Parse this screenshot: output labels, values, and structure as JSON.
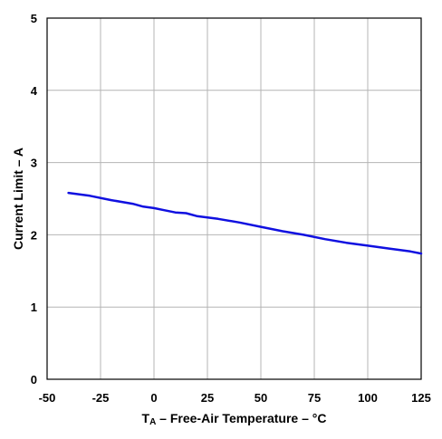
{
  "chart_data": {
    "type": "line",
    "title": "",
    "xlabel": {
      "symbol": "T",
      "subscript": "A",
      "text": " – Free-Air Temperature – °C"
    },
    "ylabel": "Current Limit – A",
    "xlim": [
      -50,
      125
    ],
    "ylim": [
      0,
      5
    ],
    "xticks": [
      "-50",
      "-25",
      "0",
      "25",
      "50",
      "75",
      "100",
      "125"
    ],
    "yticks": [
      "0",
      "1",
      "2",
      "3",
      "4",
      "5"
    ],
    "grid": true,
    "legend": "none",
    "series": [
      {
        "color": "#1010e0",
        "x": [
          -40,
          -30,
          -20,
          -10,
          -5,
          0,
          5,
          10,
          15,
          20,
          25,
          30,
          40,
          50,
          60,
          70,
          80,
          90,
          100,
          110,
          120,
          125
        ],
        "y": [
          2.58,
          2.54,
          2.48,
          2.43,
          2.39,
          2.37,
          2.34,
          2.31,
          2.3,
          2.26,
          2.24,
          2.22,
          2.17,
          2.11,
          2.05,
          2.0,
          1.94,
          1.89,
          1.85,
          1.81,
          1.77,
          1.74
        ]
      }
    ],
    "colors": {
      "grid": "#b4b4b4",
      "frame": "#000000"
    }
  }
}
